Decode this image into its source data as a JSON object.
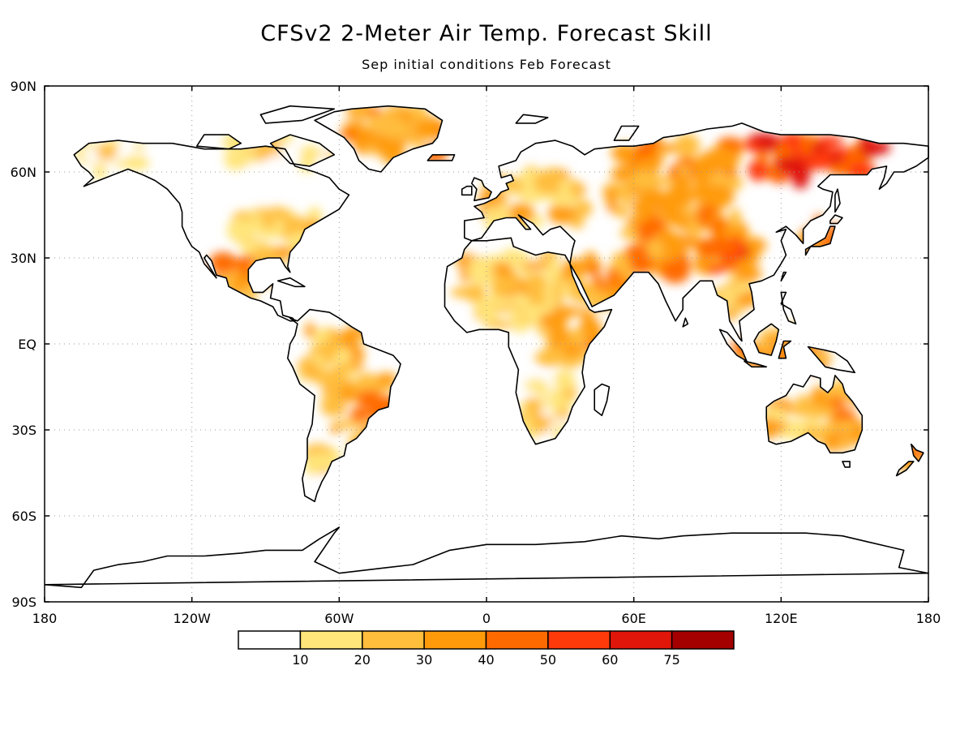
{
  "title": "CFSv2 2-Meter Air Temp. Forecast Skill",
  "subtitle": "Sep initial conditions   Feb Forecast",
  "map": {
    "projection": "equirectangular",
    "lon_range": [
      -180,
      180
    ],
    "lat_range": [
      -90,
      90
    ],
    "lat_ticks": [
      {
        "value": 90,
        "label": "90N"
      },
      {
        "value": 60,
        "label": "60N"
      },
      {
        "value": 30,
        "label": "30N"
      },
      {
        "value": 0,
        "label": "EQ"
      },
      {
        "value": -30,
        "label": "30S"
      },
      {
        "value": -60,
        "label": "60S"
      },
      {
        "value": -90,
        "label": "90S"
      }
    ],
    "lon_ticks": [
      {
        "value": -180,
        "label": "180"
      },
      {
        "value": -120,
        "label": "120W"
      },
      {
        "value": -60,
        "label": "60W"
      },
      {
        "value": 0,
        "label": "0"
      },
      {
        "value": 60,
        "label": "60E"
      },
      {
        "value": 120,
        "label": "120E"
      },
      {
        "value": 180,
        "label": "180"
      }
    ],
    "grid": "dotted"
  },
  "colorbar": {
    "labels": [
      "10",
      "20",
      "30",
      "40",
      "50",
      "60",
      "75"
    ],
    "colors": [
      "#ffffff",
      "#ffe57a",
      "#ffbe3c",
      "#ff9b0a",
      "#ff6a00",
      "#ff3a0a",
      "#e0160a",
      "#a50000"
    ]
  },
  "regions": [
    {
      "name": "greenland",
      "lon": [
        -55,
        -20
      ],
      "lat": [
        65,
        82
      ],
      "level": 3
    },
    {
      "name": "canada-arctic",
      "lon": [
        -105,
        -60
      ],
      "lat": [
        62,
        72
      ],
      "level": 1
    },
    {
      "name": "alaska",
      "lon": [
        -165,
        -140
      ],
      "lat": [
        60,
        70
      ],
      "level": 1
    },
    {
      "name": "eastern-us",
      "lon": [
        -100,
        -70
      ],
      "lat": [
        28,
        45
      ],
      "level": 2
    },
    {
      "name": "mexico",
      "lon": [
        -110,
        -90
      ],
      "lat": [
        16,
        30
      ],
      "level": 3
    },
    {
      "name": "amazon",
      "lon": [
        -75,
        -50
      ],
      "lat": [
        -12,
        5
      ],
      "level": 2
    },
    {
      "name": "brazil-south",
      "lon": [
        -65,
        -40
      ],
      "lat": [
        -35,
        -12
      ],
      "level": 3
    },
    {
      "name": "patagonia",
      "lon": [
        -72,
        -65
      ],
      "lat": [
        -55,
        -38
      ],
      "level": 1
    },
    {
      "name": "sahara",
      "lon": [
        -10,
        35
      ],
      "lat": [
        5,
        30
      ],
      "level": 2
    },
    {
      "name": "east-africa",
      "lon": [
        25,
        45
      ],
      "lat": [
        -5,
        10
      ],
      "level": 3
    },
    {
      "name": "southern-africa",
      "lon": [
        15,
        35
      ],
      "lat": [
        -32,
        -12
      ],
      "level": 1
    },
    {
      "name": "arabia",
      "lon": [
        35,
        58
      ],
      "lat": [
        14,
        30
      ],
      "level": 3
    },
    {
      "name": "europe",
      "lon": [
        0,
        40
      ],
      "lat": [
        42,
        60
      ],
      "level": 2
    },
    {
      "name": "siberia-west",
      "lon": [
        50,
        100
      ],
      "lat": [
        45,
        70
      ],
      "level": 3
    },
    {
      "name": "siberia-east",
      "lon": [
        110,
        160
      ],
      "lat": [
        58,
        72
      ],
      "level": 5
    },
    {
      "name": "central-asia",
      "lon": [
        60,
        110
      ],
      "lat": [
        25,
        45
      ],
      "level": 3
    },
    {
      "name": "tibet",
      "lon": [
        90,
        105
      ],
      "lat": [
        25,
        35
      ],
      "level": 5
    },
    {
      "name": "southeast-asia",
      "lon": [
        95,
        110
      ],
      "lat": [
        10,
        25
      ],
      "level": 2
    },
    {
      "name": "indonesia",
      "lon": [
        100,
        140
      ],
      "lat": [
        -8,
        5
      ],
      "level": 3
    },
    {
      "name": "australia-east",
      "lon": [
        135,
        153
      ],
      "lat": [
        -35,
        -15
      ],
      "level": 3
    },
    {
      "name": "australia-west",
      "lon": [
        115,
        135
      ],
      "lat": [
        -32,
        -20
      ],
      "level": 2
    },
    {
      "name": "japan",
      "lon": [
        130,
        145
      ],
      "lat": [
        32,
        43
      ],
      "level": 4
    },
    {
      "name": "new-zealand",
      "lon": [
        168,
        178
      ],
      "lat": [
        -45,
        -36
      ],
      "level": 3
    }
  ]
}
